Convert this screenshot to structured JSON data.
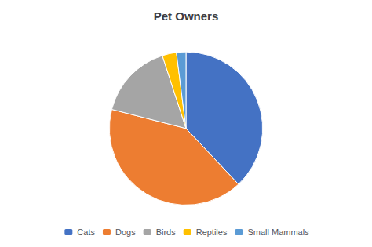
{
  "chart_data": {
    "type": "pie",
    "title": "Pet Owners",
    "categories": [
      "Cats",
      "Dogs",
      "Birds",
      "Reptiles",
      "Small Mammals"
    ],
    "values": [
      38,
      41,
      16,
      3,
      2
    ],
    "colors": [
      "#4472C4",
      "#ED7D31",
      "#A5A5A5",
      "#FFC000",
      "#5B9BD5"
    ],
    "legend": "bottom"
  }
}
